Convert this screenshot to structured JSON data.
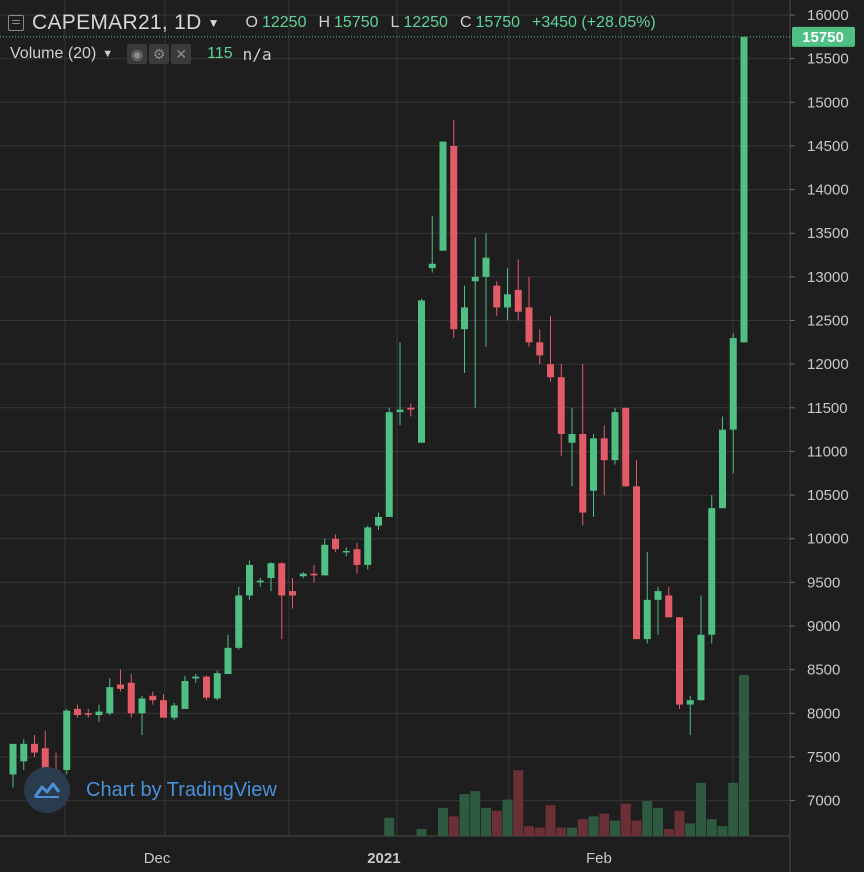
{
  "header": {
    "symbol": "CAPEMAR21, 1D",
    "ohlc": [
      {
        "key": "O",
        "value": "12250"
      },
      {
        "key": "H",
        "value": "15750"
      },
      {
        "key": "L",
        "value": "12250"
      },
      {
        "key": "C",
        "value": "15750"
      }
    ],
    "change": "+3450 (+28.05%)",
    "study_label": "Volume (20)",
    "study_value": "115",
    "study_na": "n/a"
  },
  "watermark": {
    "text": "Chart by TradingView"
  },
  "colors": {
    "background": "#1e1e1e",
    "grid": "#363636",
    "up": "#4fbf84",
    "down": "#e35b66",
    "vol_up": "#2f5a42",
    "vol_down": "#6b2f36",
    "last_price": "#4fbf84"
  },
  "chart_data": {
    "type": "candlestick",
    "title": "",
    "ylim": [
      6600,
      16050
    ],
    "y_ticks": [
      "7000",
      "7500",
      "8000",
      "8500",
      "9000",
      "9500",
      "10000",
      "10500",
      "11000",
      "11500",
      "12000",
      "12500",
      "13000",
      "13500",
      "14000",
      "14500",
      "15000",
      "15500",
      "16000"
    ],
    "x_ticks": [
      {
        "label": "Dec",
        "index": 13.4
      },
      {
        "label": "2021",
        "index": 34.5
      },
      {
        "label": "Feb",
        "index": 54.5
      }
    ],
    "last_price_label": "15750",
    "last_price": 15750,
    "candles": [
      {
        "o": 7300,
        "h": 7650,
        "l": 7150,
        "c": 7650,
        "v": null
      },
      {
        "o": 7450,
        "h": 7700,
        "l": 7350,
        "c": 7650,
        "v": null
      },
      {
        "o": 7650,
        "h": 7750,
        "l": 7500,
        "c": 7550,
        "v": null
      },
      {
        "o": 7600,
        "h": 7800,
        "l": 7300,
        "c": 7350,
        "v": null
      },
      {
        "o": 7350,
        "h": 7550,
        "l": 7200,
        "c": 7300,
        "v": null
      },
      {
        "o": 7350,
        "h": 8050,
        "l": 7300,
        "c": 8030,
        "v": null
      },
      {
        "o": 8050,
        "h": 8100,
        "l": 7950,
        "c": 7980,
        "v": null
      },
      {
        "o": 8000,
        "h": 8050,
        "l": 7950,
        "c": 7990,
        "v": null
      },
      {
        "o": 7980,
        "h": 8100,
        "l": 7900,
        "c": 8020,
        "v": null
      },
      {
        "o": 8000,
        "h": 8400,
        "l": 7980,
        "c": 8300,
        "v": null
      },
      {
        "o": 8330,
        "h": 8500,
        "l": 8250,
        "c": 8280,
        "v": null
      },
      {
        "o": 8350,
        "h": 8450,
        "l": 7950,
        "c": 8000,
        "v": null
      },
      {
        "o": 8000,
        "h": 8200,
        "l": 7750,
        "c": 8170,
        "v": null
      },
      {
        "o": 8200,
        "h": 8250,
        "l": 8100,
        "c": 8150,
        "v": null
      },
      {
        "o": 8150,
        "h": 8220,
        "l": 7950,
        "c": 7950,
        "v": null
      },
      {
        "o": 7950,
        "h": 8120,
        "l": 7920,
        "c": 8090,
        "v": null
      },
      {
        "o": 8050,
        "h": 8430,
        "l": 8050,
        "c": 8370,
        "v": null
      },
      {
        "o": 8400,
        "h": 8450,
        "l": 8350,
        "c": 8420,
        "v": null
      },
      {
        "o": 8420,
        "h": 8430,
        "l": 8150,
        "c": 8180,
        "v": null
      },
      {
        "o": 8170,
        "h": 8490,
        "l": 8150,
        "c": 8460,
        "v": null
      },
      {
        "o": 8450,
        "h": 8900,
        "l": 8450,
        "c": 8750,
        "v": null
      },
      {
        "o": 8750,
        "h": 9450,
        "l": 8730,
        "c": 9350,
        "v": null
      },
      {
        "o": 9350,
        "h": 9750,
        "l": 9300,
        "c": 9700,
        "v": null
      },
      {
        "o": 9500,
        "h": 9550,
        "l": 9450,
        "c": 9520,
        "v": null
      },
      {
        "o": 9550,
        "h": 9730,
        "l": 9400,
        "c": 9720,
        "v": null
      },
      {
        "o": 9720,
        "h": 9730,
        "l": 8850,
        "c": 9350,
        "v": null
      },
      {
        "o": 9400,
        "h": 9550,
        "l": 9200,
        "c": 9350,
        "v": null
      },
      {
        "o": 9570,
        "h": 9620,
        "l": 9550,
        "c": 9600,
        "v": null
      },
      {
        "o": 9600,
        "h": 9700,
        "l": 9500,
        "c": 9580,
        "v": null
      },
      {
        "o": 9580,
        "h": 10000,
        "l": 9580,
        "c": 9930,
        "v": null
      },
      {
        "o": 10000,
        "h": 10050,
        "l": 9850,
        "c": 9880,
        "v": null
      },
      {
        "o": 9850,
        "h": 9900,
        "l": 9800,
        "c": 9860,
        "v": null
      },
      {
        "o": 9880,
        "h": 9950,
        "l": 9600,
        "c": 9700,
        "v": null
      },
      {
        "o": 9700,
        "h": 10150,
        "l": 9650,
        "c": 10130,
        "v": null
      },
      {
        "o": 10150,
        "h": 10300,
        "l": 10100,
        "c": 10250,
        "v": null
      },
      {
        "o": 10250,
        "h": 11500,
        "l": 10250,
        "c": 11450,
        "v": 13
      },
      {
        "o": 11450,
        "h": 12250,
        "l": 11300,
        "c": 11480,
        "v": null
      },
      {
        "o": 11500,
        "h": 11550,
        "l": 11400,
        "c": 11480,
        "v": null
      },
      {
        "o": 11100,
        "h": 12750,
        "l": 11100,
        "c": 12730,
        "v": 5
      },
      {
        "o": 13100,
        "h": 13700,
        "l": 13050,
        "c": 13150,
        "v": null
      },
      {
        "o": 13300,
        "h": 14550,
        "l": 13300,
        "c": 14550,
        "v": 20
      },
      {
        "o": 14500,
        "h": 14800,
        "l": 12300,
        "c": 12400,
        "v": 14
      },
      {
        "o": 12400,
        "h": 12900,
        "l": 11900,
        "c": 12650,
        "v": 30
      },
      {
        "o": 12950,
        "h": 13450,
        "l": 11500,
        "c": 13000,
        "v": 32
      },
      {
        "o": 13000,
        "h": 13500,
        "l": 12200,
        "c": 13220,
        "v": 20
      },
      {
        "o": 12900,
        "h": 12950,
        "l": 12550,
        "c": 12650,
        "v": 18
      },
      {
        "o": 12650,
        "h": 13100,
        "l": 12500,
        "c": 12800,
        "v": 26
      },
      {
        "o": 12850,
        "h": 13200,
        "l": 12500,
        "c": 12600,
        "v": 47
      },
      {
        "o": 12650,
        "h": 13000,
        "l": 12200,
        "c": 12250,
        "v": 7
      },
      {
        "o": 12250,
        "h": 12400,
        "l": 12000,
        "c": 12100,
        "v": 6
      },
      {
        "o": 12000,
        "h": 12550,
        "l": 11800,
        "c": 11850,
        "v": 22
      },
      {
        "o": 11850,
        "h": 12000,
        "l": 10950,
        "c": 11200,
        "v": 6
      },
      {
        "o": 11100,
        "h": 11500,
        "l": 10600,
        "c": 11200,
        "v": 6
      },
      {
        "o": 11200,
        "h": 12000,
        "l": 10150,
        "c": 10300,
        "v": 12
      },
      {
        "o": 10550,
        "h": 11200,
        "l": 10250,
        "c": 11150,
        "v": 14
      },
      {
        "o": 11150,
        "h": 11300,
        "l": 10500,
        "c": 10900,
        "v": 16
      },
      {
        "o": 10900,
        "h": 11500,
        "l": 10850,
        "c": 11450,
        "v": 11
      },
      {
        "o": 11500,
        "h": 11500,
        "l": 10600,
        "c": 10600,
        "v": 23
      },
      {
        "o": 10600,
        "h": 10900,
        "l": 8850,
        "c": 8850,
        "v": 11
      },
      {
        "o": 8850,
        "h": 9850,
        "l": 8800,
        "c": 9300,
        "v": 25
      },
      {
        "o": 9300,
        "h": 9450,
        "l": 8900,
        "c": 9400,
        "v": 20
      },
      {
        "o": 9350,
        "h": 9450,
        "l": 9100,
        "c": 9100,
        "v": 5
      },
      {
        "o": 9100,
        "h": 9100,
        "l": 8050,
        "c": 8100,
        "v": 18
      },
      {
        "o": 8100,
        "h": 8200,
        "l": 7750,
        "c": 8150,
        "v": 9
      },
      {
        "o": 8150,
        "h": 9350,
        "l": 8150,
        "c": 8900,
        "v": 38
      },
      {
        "o": 8900,
        "h": 10500,
        "l": 8800,
        "c": 10350,
        "v": 12
      },
      {
        "o": 10350,
        "h": 11400,
        "l": 10350,
        "c": 11250,
        "v": 7
      },
      {
        "o": 11250,
        "h": 12350,
        "l": 10750,
        "c": 12300,
        "v": 38
      },
      {
        "o": 12250,
        "h": 15750,
        "l": 12250,
        "c": 15750,
        "v": 115
      }
    ],
    "volume_ylim": [
      0,
      120
    ],
    "volume_series_label": "Volume (20)"
  }
}
